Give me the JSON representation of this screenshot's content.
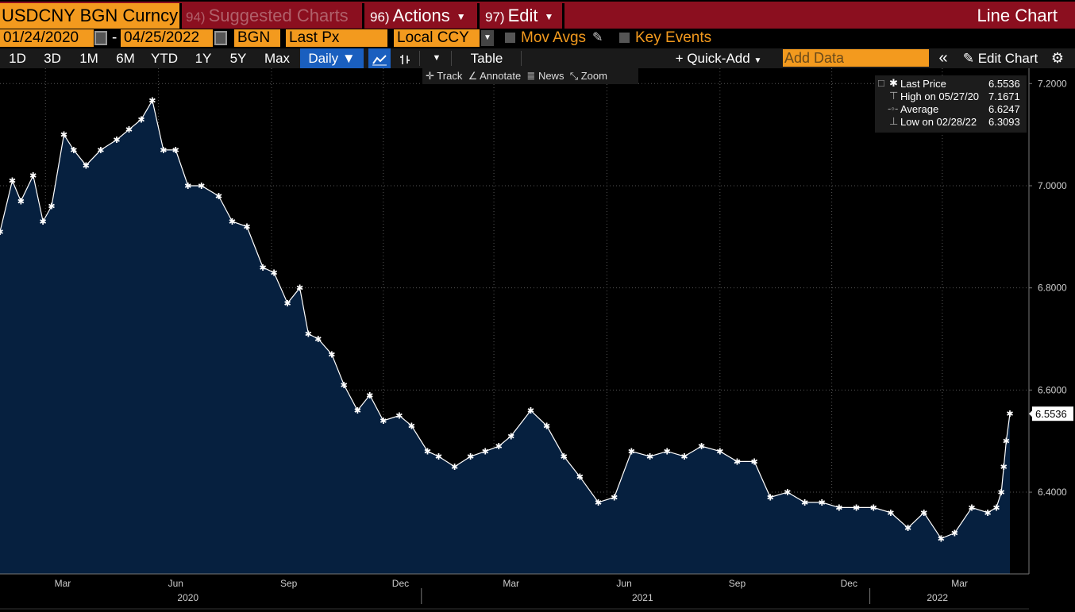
{
  "header": {
    "ticker": "USDCNY BGN Curncy",
    "menu_suggested_num": "94)",
    "menu_suggested": "Suggested Charts",
    "menu_actions_num": "96)",
    "menu_actions": "Actions",
    "menu_edit_num": "97)",
    "menu_edit": "Edit",
    "chart_type": "Line Chart"
  },
  "params": {
    "start_date": "01/24/2020",
    "end_date": "04/25/2022",
    "source": "BGN",
    "field": "Last Px",
    "currency": "Local CCY",
    "mov_avgs": "Mov Avgs",
    "key_events": "Key Events"
  },
  "toolbar": {
    "ranges": [
      "1D",
      "3D",
      "1M",
      "6M",
      "YTD",
      "1Y",
      "5Y",
      "Max"
    ],
    "frequency": "Daily",
    "table": "Table",
    "quick_add": "Quick-Add",
    "add_data_placeholder": "Add Data",
    "edit_chart": "Edit Chart"
  },
  "chart_tools": [
    "Track",
    "Annotate",
    "News",
    "Zoom"
  ],
  "legend": {
    "last_price_label": "Last Price",
    "last_price_value": "6.5536",
    "high_label": "High on 05/27/20",
    "high_value": "7.1671",
    "average_label": "Average",
    "average_value": "6.6247",
    "low_label": "Low on 02/28/22",
    "low_value": "6.3093"
  },
  "colors": {
    "orange": "#f39a1e",
    "title_red": "#8b0f1f",
    "area_fill": "#06203f",
    "selected_blue": "#1a5fbf"
  },
  "chart_data": {
    "type": "area",
    "series": [
      {
        "name": "Last Price",
        "x": [
          "2020-01-24",
          "2020-02-03",
          "2020-02-10",
          "2020-02-20",
          "2020-02-28",
          "2020-03-06",
          "2020-03-16",
          "2020-03-24",
          "2020-04-03",
          "2020-04-15",
          "2020-04-28",
          "2020-05-08",
          "2020-05-18",
          "2020-05-27",
          "2020-06-05",
          "2020-06-15",
          "2020-06-25",
          "2020-07-06",
          "2020-07-20",
          "2020-07-31",
          "2020-08-12",
          "2020-08-25",
          "2020-09-03",
          "2020-09-14",
          "2020-09-24",
          "2020-10-01",
          "2020-10-09",
          "2020-10-20",
          "2020-10-30",
          "2020-11-10",
          "2020-11-20",
          "2020-12-01",
          "2020-12-14",
          "2020-12-24",
          "2021-01-06",
          "2021-01-15",
          "2021-01-28",
          "2021-02-10",
          "2021-02-22",
          "2021-03-05",
          "2021-03-15",
          "2021-03-31",
          "2021-04-13",
          "2021-04-27",
          "2021-05-10",
          "2021-05-25",
          "2021-06-07",
          "2021-06-21",
          "2021-07-06",
          "2021-07-20",
          "2021-08-03",
          "2021-08-17",
          "2021-09-01",
          "2021-09-15",
          "2021-09-29",
          "2021-10-12",
          "2021-10-26",
          "2021-11-09",
          "2021-11-23",
          "2021-12-07",
          "2021-12-21",
          "2022-01-04",
          "2022-01-18",
          "2022-02-01",
          "2022-02-14",
          "2022-02-28",
          "2022-03-11",
          "2022-03-25",
          "2022-04-07",
          "2022-04-14",
          "2022-04-18",
          "2022-04-20",
          "2022-04-22",
          "2022-04-25"
        ],
        "y": [
          6.91,
          7.01,
          6.97,
          7.02,
          6.93,
          6.96,
          7.1,
          7.07,
          7.04,
          7.07,
          7.09,
          7.11,
          7.13,
          7.1671,
          7.07,
          7.07,
          7.0,
          7.0,
          6.98,
          6.93,
          6.92,
          6.84,
          6.83,
          6.77,
          6.8,
          6.71,
          6.7,
          6.67,
          6.61,
          6.56,
          6.59,
          6.54,
          6.55,
          6.53,
          6.48,
          6.47,
          6.45,
          6.47,
          6.48,
          6.49,
          6.51,
          6.56,
          6.53,
          6.47,
          6.43,
          6.38,
          6.39,
          6.48,
          6.47,
          6.48,
          6.47,
          6.49,
          6.48,
          6.46,
          6.46,
          6.39,
          6.4,
          6.38,
          6.38,
          6.37,
          6.37,
          6.37,
          6.36,
          6.33,
          6.36,
          6.3093,
          6.32,
          6.37,
          6.36,
          6.37,
          6.4,
          6.45,
          6.5,
          6.5536
        ]
      }
    ],
    "x_ticks_month": [
      "Mar",
      "Jun",
      "Sep",
      "Dec",
      "Mar",
      "Jun",
      "Sep",
      "Dec",
      "Mar"
    ],
    "x_ticks_year": [
      "2020",
      "2021",
      "2022"
    ],
    "y_ticks": [
      "7.2000",
      "7.0000",
      "6.8000",
      "6.6000",
      "6.4000"
    ],
    "ylim": [
      6.24,
      7.23
    ],
    "last_value_label": "6.5536",
    "grid": true
  }
}
